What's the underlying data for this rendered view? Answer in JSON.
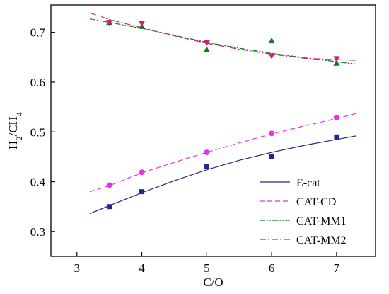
{
  "chart_data": {
    "type": "scatter",
    "xlabel": "C/O",
    "ylabel_parts": {
      "main": "H",
      "sub1": "2",
      "slash": "/CH",
      "sub2": "4"
    },
    "xlim": [
      2.6,
      7.6
    ],
    "ylim": [
      0.25,
      0.755
    ],
    "x_ticks": [
      3,
      4,
      5,
      6,
      7
    ],
    "y_ticks": [
      0.3,
      0.4,
      0.5,
      0.6,
      0.7
    ],
    "x_tick_labels": [
      "3",
      "4",
      "5",
      "6",
      "7"
    ],
    "y_tick_labels": [
      "0.3",
      "0.4",
      "0.5",
      "0.6",
      "0.7"
    ],
    "grid": false,
    "legend_position": "bottom-right",
    "series": [
      {
        "name": "E-cat",
        "color": "#1f2a8c",
        "marker": "square",
        "line": "solid",
        "points": {
          "x": [
            3.5,
            4,
            5,
            6,
            7
          ],
          "y": [
            0.35,
            0.38,
            0.43,
            0.45,
            0.49
          ]
        },
        "fit": {
          "x": [
            3.2,
            3.5,
            4,
            4.5,
            5,
            5.5,
            6,
            6.5,
            7,
            7.3
          ],
          "y": [
            0.336,
            0.352,
            0.378,
            0.402,
            0.424,
            0.443,
            0.459,
            0.473,
            0.485,
            0.492
          ]
        }
      },
      {
        "name": "CAT-CD",
        "color": "#e632e6",
        "marker": "circle",
        "line": "dashed",
        "points": {
          "x": [
            3.5,
            4,
            5,
            6,
            7
          ],
          "y": [
            0.393,
            0.419,
            0.459,
            0.497,
            0.529
          ]
        },
        "fit": {
          "x": [
            3.2,
            3.5,
            4,
            4.5,
            5,
            5.5,
            6,
            6.5,
            7,
            7.3
          ],
          "y": [
            0.38,
            0.392,
            0.418,
            0.439,
            0.459,
            0.478,
            0.496,
            0.512,
            0.527,
            0.537
          ]
        }
      },
      {
        "name": "CAT-MM1",
        "color": "#1a7a1a",
        "marker": "triangle",
        "line": "dashdotdot",
        "points": {
          "x": [
            3.5,
            4,
            5,
            6,
            7
          ],
          "y": [
            0.72,
            0.712,
            0.665,
            0.683,
            0.638
          ]
        },
        "fit": {
          "x": [
            3.2,
            3.5,
            4,
            4.5,
            5,
            5.5,
            6,
            6.5,
            7,
            7.3
          ],
          "y": [
            0.727,
            0.72,
            0.708,
            0.694,
            0.68,
            0.668,
            0.658,
            0.649,
            0.641,
            0.636
          ]
        }
      },
      {
        "name": "CAT-MM2",
        "color": "#c8237a",
        "marker": "triangle-down",
        "line": "dashdot",
        "points": {
          "x": [
            3.5,
            4,
            5,
            6,
            7
          ],
          "y": [
            0.72,
            0.718,
            0.679,
            0.653,
            0.647
          ]
        },
        "fit": {
          "x": [
            3.2,
            3.5,
            4,
            4.5,
            5,
            5.5,
            6,
            6.5,
            7,
            7.3
          ],
          "y": [
            0.739,
            0.726,
            0.709,
            0.693,
            0.678,
            0.666,
            0.656,
            0.648,
            0.645,
            0.644
          ]
        }
      }
    ]
  }
}
